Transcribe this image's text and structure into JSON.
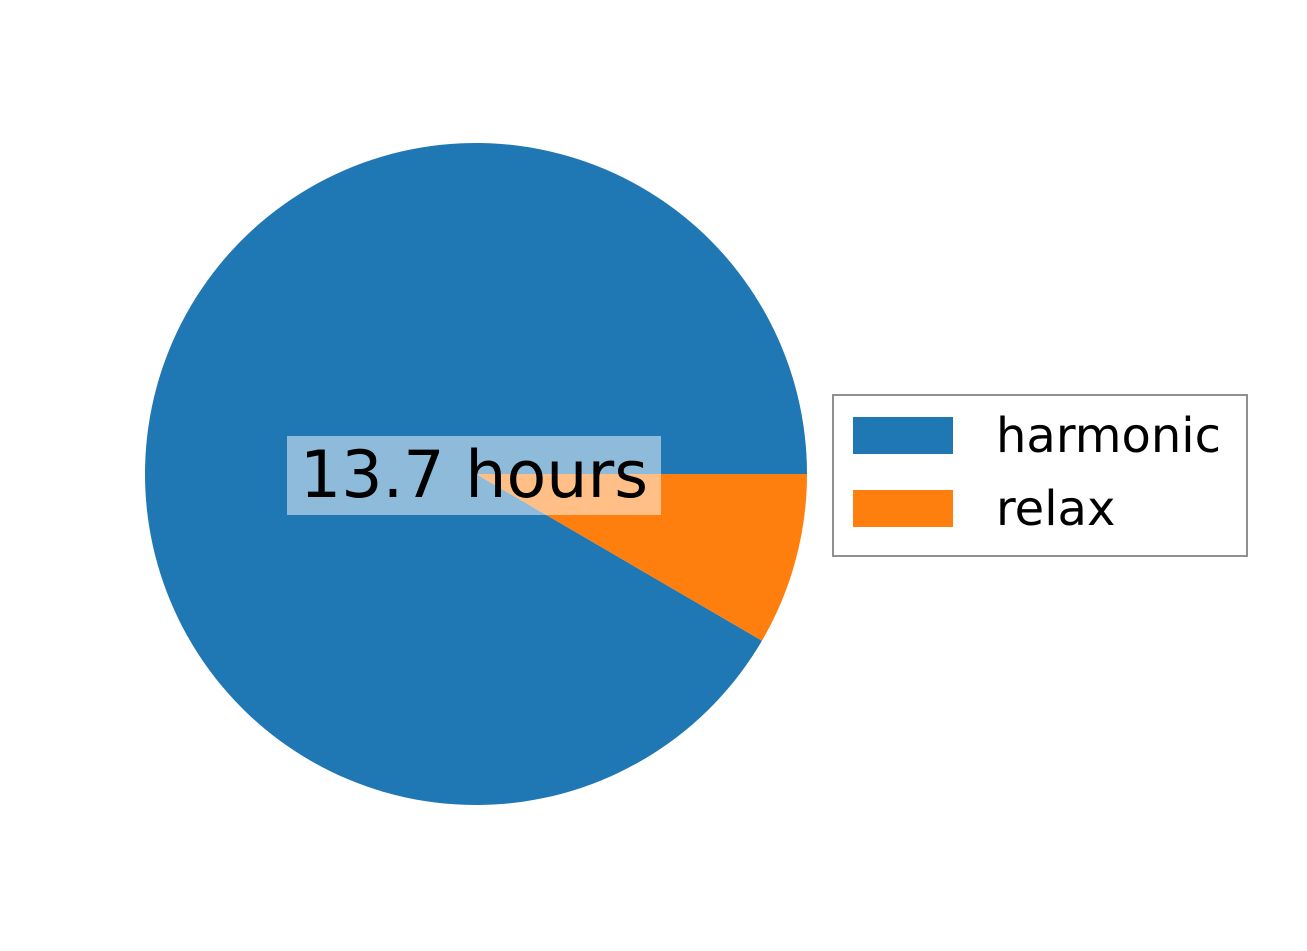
{
  "canvas": {
    "background": "#ffffff"
  },
  "chart_data": {
    "type": "pie",
    "title": "",
    "center_label": "13.7 hours",
    "center_label_bg": "rgba(255,255,255,0.5)",
    "start_angle_deg": 0,
    "direction": "counterclockwise",
    "slices": [
      {
        "label": "harmonic",
        "fraction": 0.916,
        "color": "#1f77b4"
      },
      {
        "label": "relax",
        "fraction": 0.084,
        "color": "#ff7f0e"
      }
    ],
    "legend": {
      "position": "right",
      "background": "#ffffff",
      "border_color": "#909090"
    }
  }
}
